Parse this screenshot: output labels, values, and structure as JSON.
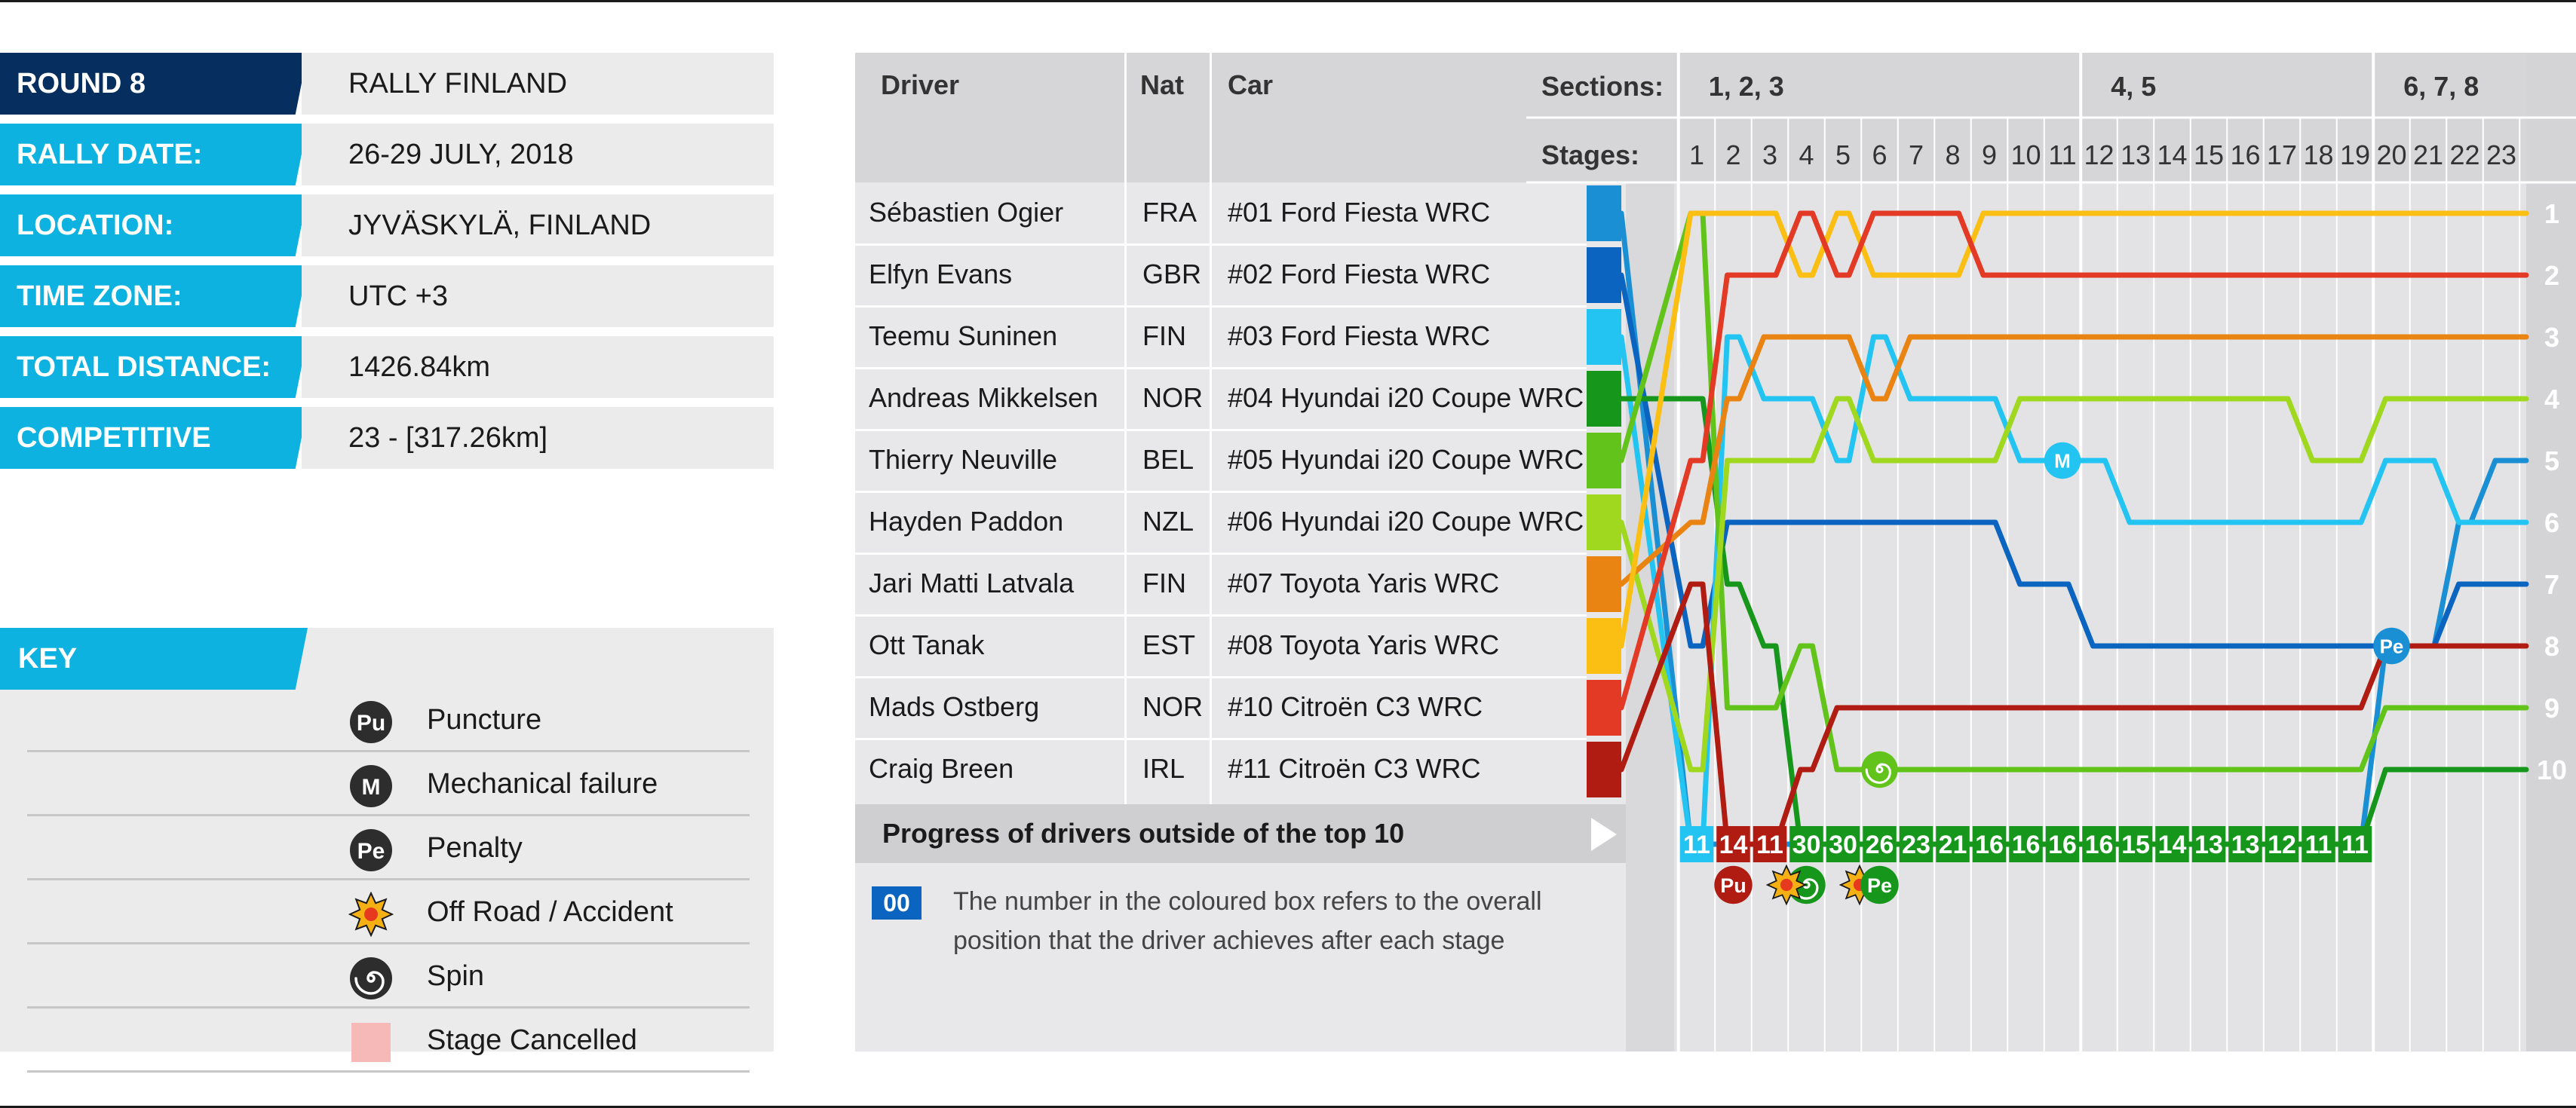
{
  "info": [
    {
      "label": "ROUND 8",
      "value": "RALLY FINLAND",
      "color": "#062e5e"
    },
    {
      "label": "RALLY DATE:",
      "value": "26-29 JULY, 2018",
      "color": "#0db2e0"
    },
    {
      "label": "LOCATION:",
      "value": "JYVÄSKYLÄ, FINLAND",
      "color": "#0db2e0"
    },
    {
      "label": "TIME ZONE:",
      "value": "UTC +3",
      "color": "#0db2e0"
    },
    {
      "label": "TOTAL DISTANCE:",
      "value": "1426.84km",
      "color": "#0db2e0"
    },
    {
      "label": "COMPETITIVE STAGES:",
      "value": "23 - [317.26km]",
      "color": "#0db2e0"
    }
  ],
  "key": {
    "title": "KEY",
    "items": [
      {
        "icon": "puncture-icon",
        "glyph": "Pu",
        "label": "Puncture"
      },
      {
        "icon": "mechanical-failure-icon",
        "glyph": "M",
        "label": "Mechanical failure"
      },
      {
        "icon": "penalty-icon",
        "glyph": "Pe",
        "label": "Penalty"
      },
      {
        "icon": "off-road-accident-icon",
        "glyph": "",
        "label": "Off Road / Accident"
      },
      {
        "icon": "spin-icon",
        "glyph": "",
        "label": "Spin"
      },
      {
        "icon": "stage-cancelled-icon",
        "glyph": "",
        "label": "Stage Cancelled"
      }
    ]
  },
  "table": {
    "headers": {
      "driver": "Driver",
      "nat": "Nat",
      "car": "Car",
      "sections": "Sections:",
      "stages": "Stages:"
    },
    "sections": [
      "1, 2, 3",
      "4, 5",
      "6, 7, 8"
    ],
    "progress_title": "Progress of drivers outside of the top 10",
    "example_badge": "00",
    "example_text": "The number in the coloured box refers to the overall position that the driver achieves after each stage"
  },
  "chart_data": {
    "type": "line",
    "title": "",
    "stages": [
      "1",
      "2",
      "3",
      "4",
      "5",
      "6",
      "7",
      "8",
      "9",
      "10",
      "11",
      "12",
      "13",
      "14",
      "15",
      "16",
      "17",
      "18",
      "19",
      "20",
      "21",
      "22",
      "23"
    ],
    "start_label": "",
    "y_meaning": "overall position",
    "ylim": [
      1,
      10
    ],
    "series": [
      {
        "name": "Sébastien Ogier",
        "nat": "FRA",
        "car": "#01  Ford Fiesta WRC",
        "color": "#1b8fd4",
        "start": 1,
        "positions": [
          11,
          14,
          11,
          30,
          30,
          26,
          23,
          21,
          16,
          16,
          16,
          16,
          15,
          14,
          13,
          13,
          12,
          11,
          11,
          8,
          8,
          6,
          5
        ],
        "events": [
          {
            "stage": 20,
            "type": "penalty",
            "label": "Pe"
          }
        ]
      },
      {
        "name": "Elfyn Evans",
        "nat": "GBR",
        "car": "#02  Ford Fiesta WRC",
        "color": "#0b64c0",
        "start": 2,
        "positions": [
          8,
          6,
          6,
          6,
          6,
          6,
          6,
          6,
          6,
          7,
          7,
          8,
          8,
          8,
          8,
          8,
          8,
          8,
          8,
          8,
          8,
          7,
          7
        ]
      },
      {
        "name": "Teemu Suninen",
        "nat": "FIN",
        "car": "#03  Ford Fiesta WRC",
        "color": "#23c4f2",
        "start": 3,
        "positions": [
          11,
          3,
          4,
          4,
          5,
          3,
          4,
          4,
          4,
          5,
          5,
          5,
          6,
          6,
          6,
          6,
          6,
          6,
          6,
          5,
          5,
          6,
          6
        ],
        "events": [
          {
            "stage": 11,
            "type": "mechanical",
            "label": "M"
          }
        ]
      },
      {
        "name": "Andreas Mikkelsen",
        "nat": "NOR",
        "car": "#04  Hyundai i20 Coupe WRC",
        "color": "#16971c",
        "start": 4,
        "positions": [
          4,
          7,
          8,
          30,
          30,
          26,
          23,
          21,
          16,
          16,
          16,
          16,
          15,
          14,
          13,
          13,
          12,
          11,
          11,
          10,
          10,
          10,
          10
        ],
        "events": [
          {
            "stage": 4,
            "type": "spin"
          },
          {
            "stage": 5,
            "type": "offroad"
          },
          {
            "stage": 6,
            "type": "penalty",
            "label": "Pe"
          }
        ]
      },
      {
        "name": "Thierry Neuville",
        "nat": "BEL",
        "car": "#05  Hyundai i20 Coupe WRC",
        "color": "#62c41a",
        "start": 5,
        "positions": [
          1,
          9,
          9,
          8,
          10,
          10,
          10,
          10,
          10,
          10,
          10,
          10,
          10,
          10,
          10,
          10,
          10,
          10,
          10,
          9,
          9,
          9,
          9
        ],
        "events": [
          {
            "stage": 6,
            "type": "spin"
          }
        ]
      },
      {
        "name": "Hayden Paddon",
        "nat": "NZL",
        "car": "#06  Hyundai i20 Coupe WRC",
        "color": "#9fd81f",
        "start": 6,
        "positions": [
          10,
          5,
          5,
          5,
          4,
          5,
          5,
          5,
          5,
          4,
          4,
          4,
          4,
          4,
          4,
          4,
          4,
          5,
          5,
          4,
          4,
          4,
          4
        ]
      },
      {
        "name": "Jari Matti Latvala",
        "nat": "FIN",
        "car": "#07  Toyota Yaris WRC",
        "color": "#e98312",
        "start": 7,
        "positions": [
          6,
          4,
          3,
          3,
          3,
          4,
          3,
          3,
          3,
          3,
          3,
          3,
          3,
          3,
          3,
          3,
          3,
          3,
          3,
          3,
          3,
          3,
          3
        ]
      },
      {
        "name": "Ott Tanak",
        "nat": "EST",
        "car": "#08  Toyota Yaris WRC",
        "color": "#fbbf14",
        "start": 8,
        "positions": [
          1,
          1,
          1,
          2,
          1,
          2,
          2,
          2,
          1,
          1,
          1,
          1,
          1,
          1,
          1,
          1,
          1,
          1,
          1,
          1,
          1,
          1,
          1
        ]
      },
      {
        "name": "Mads Ostberg",
        "nat": "NOR",
        "car": "#10  Citroën C3 WRC",
        "color": "#e33a26",
        "start": 9,
        "positions": [
          5,
          2,
          2,
          1,
          2,
          1,
          1,
          1,
          2,
          2,
          2,
          2,
          2,
          2,
          2,
          2,
          2,
          2,
          2,
          2,
          2,
          2,
          2
        ]
      },
      {
        "name": "Craig Breen",
        "nat": "IRL",
        "car": "#11  Citroën C3 WRC",
        "color": "#b01c12",
        "start": 10,
        "positions": [
          7,
          14,
          11,
          10,
          9,
          9,
          9,
          9,
          9,
          9,
          9,
          9,
          9,
          9,
          9,
          9,
          9,
          9,
          9,
          8,
          8,
          8,
          8
        ],
        "events": [
          {
            "stage": 2,
            "type": "puncture",
            "label": "Pu"
          },
          {
            "stage": 3,
            "type": "offroad"
          }
        ]
      }
    ]
  }
}
